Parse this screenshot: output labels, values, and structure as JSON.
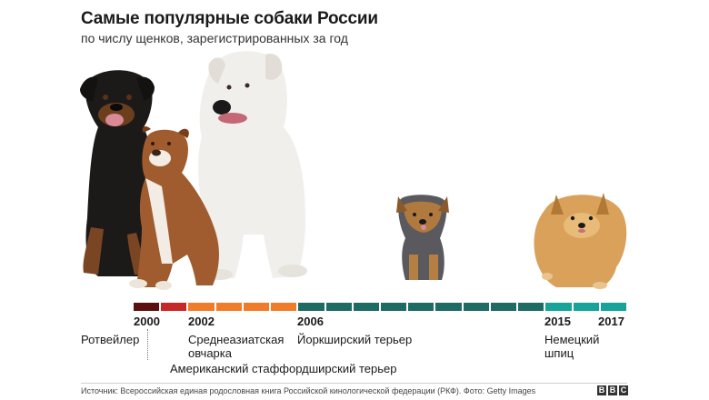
{
  "header": {
    "title": "Самые популярные собаки России",
    "subtitle": "по числу щенков, зарегистрированных за год"
  },
  "timeline": {
    "years": [
      "2000",
      "2002",
      "2006",
      "2015",
      "2017"
    ],
    "segment_colors": [
      "#5b0f0f",
      "#c62828",
      "#f07c2a",
      "#f07c2a",
      "#f07c2a",
      "#f07c2a",
      "#1e6b64",
      "#1e6b64",
      "#1e6b64",
      "#1e6b64",
      "#1e6b64",
      "#1e6b64",
      "#1e6b64",
      "#1e6b64",
      "#1e6b64",
      "#17a39a",
      "#17a39a",
      "#17a39a"
    ]
  },
  "breeds": {
    "rottweiler": "Ротвейлер",
    "central_asian_1": "Среднеазиатская",
    "central_asian_2": "овчарка",
    "american_staff": "Американский стаффордширский терьер",
    "yorkshire": "Йоркширский терьер",
    "spitz_1": "Немецкий",
    "spitz_2": "шпиц"
  },
  "footer": {
    "source": "Источник: Всероссийская единая родословная книга Российской кинологической федерации (РКФ). Фото: Getty Images",
    "brand": [
      "B",
      "B",
      "C"
    ]
  }
}
